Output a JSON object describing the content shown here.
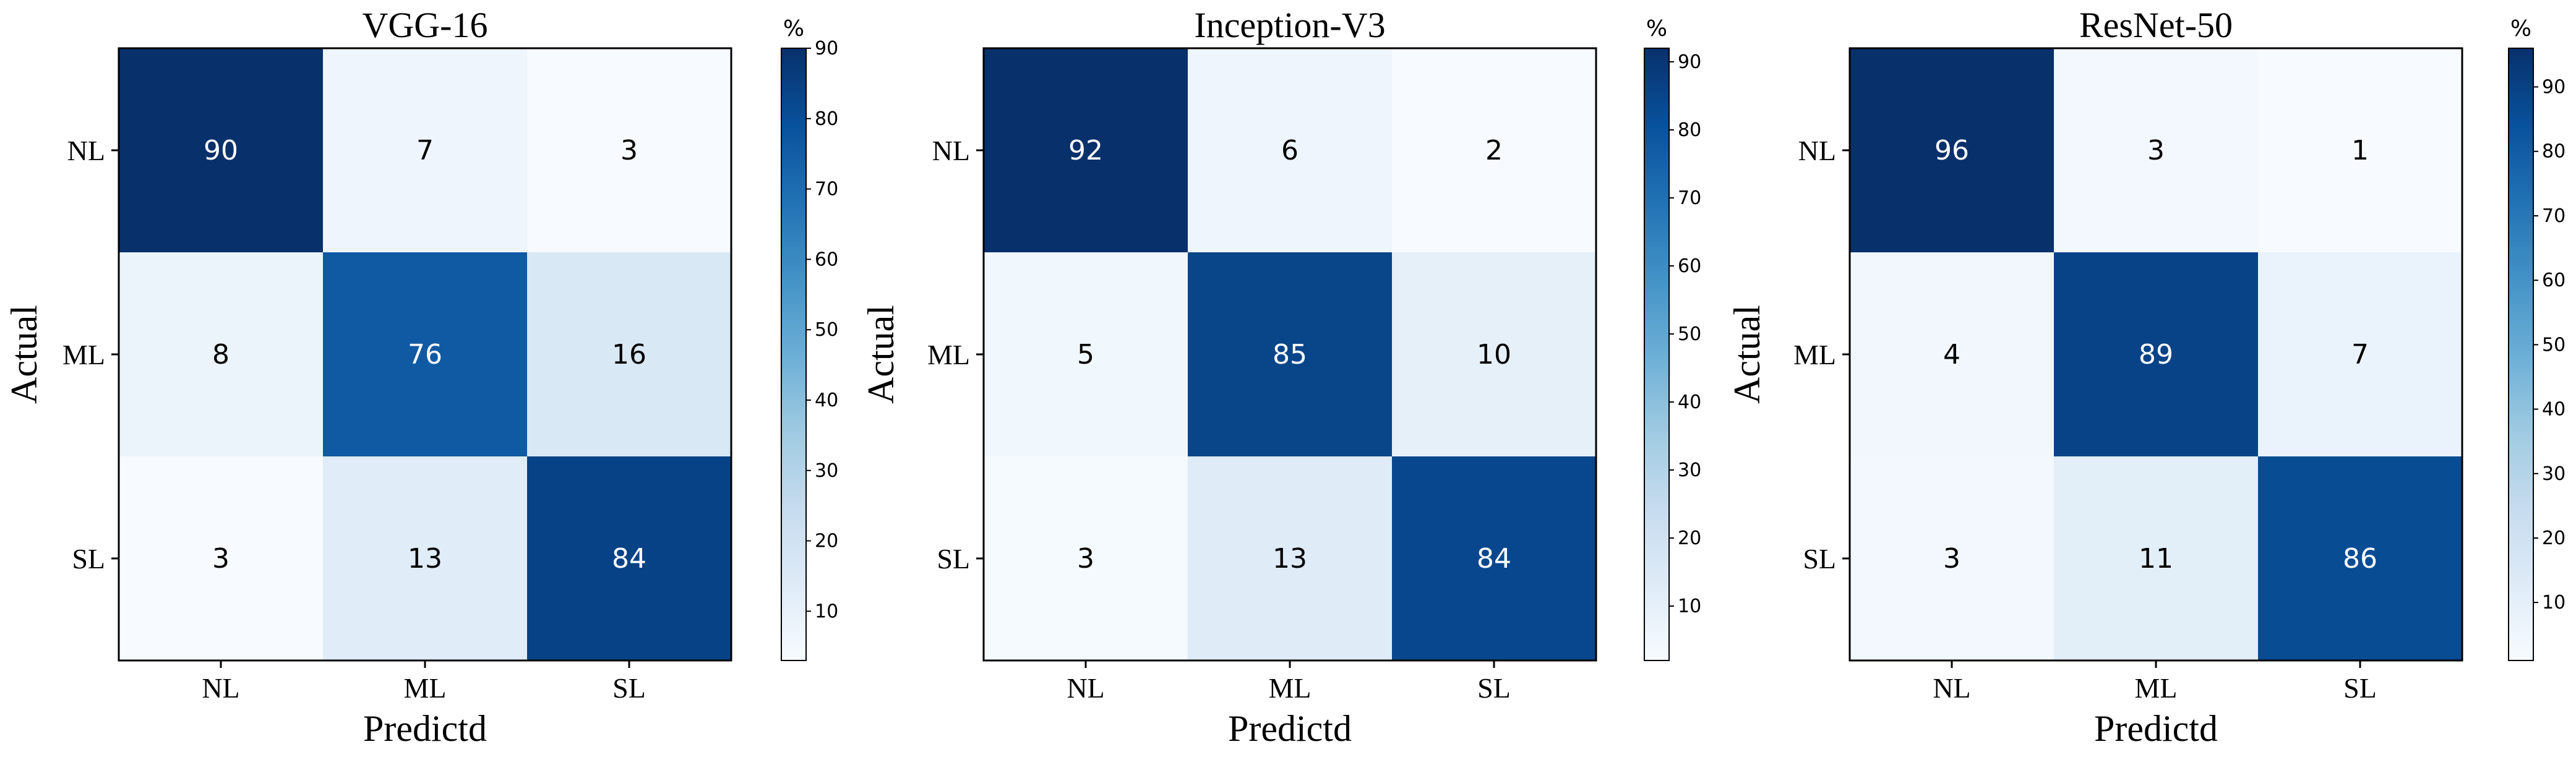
{
  "chart_data": [
    {
      "type": "heatmap",
      "title": "VGG-16",
      "xlabel": "Predictd",
      "ylabel": "Actual",
      "x_categories": [
        "NL",
        "ML",
        "SL"
      ],
      "y_categories": [
        "NL",
        "ML",
        "SL"
      ],
      "values": [
        [
          90,
          7,
          3
        ],
        [
          8,
          76,
          16
        ],
        [
          3,
          13,
          84
        ]
      ],
      "colorbar": {
        "unit": "%",
        "min": 3,
        "max": 90,
        "ticks": [
          10,
          20,
          30,
          40,
          50,
          60,
          70,
          80,
          90
        ],
        "colormap": "Blues"
      }
    },
    {
      "type": "heatmap",
      "title": "Inception-V3",
      "xlabel": "Predictd",
      "ylabel": "Actual",
      "x_categories": [
        "NL",
        "ML",
        "SL"
      ],
      "y_categories": [
        "NL",
        "ML",
        "SL"
      ],
      "values": [
        [
          92,
          6,
          2
        ],
        [
          5,
          85,
          10
        ],
        [
          3,
          13,
          84
        ]
      ],
      "colorbar": {
        "unit": "%",
        "min": 2,
        "max": 92,
        "ticks": [
          10,
          20,
          30,
          40,
          50,
          60,
          70,
          80,
          90
        ],
        "colormap": "Blues"
      }
    },
    {
      "type": "heatmap",
      "title": "ResNet-50",
      "xlabel": "Predictd",
      "ylabel": "Actual",
      "x_categories": [
        "NL",
        "ML",
        "SL"
      ],
      "y_categories": [
        "NL",
        "ML",
        "SL"
      ],
      "values": [
        [
          96,
          3,
          1
        ],
        [
          4,
          89,
          7
        ],
        [
          3,
          11,
          86
        ]
      ],
      "colorbar": {
        "unit": "%",
        "min": 1,
        "max": 96,
        "ticks": [
          10,
          20,
          30,
          40,
          50,
          60,
          70,
          80,
          90
        ],
        "colormap": "Blues"
      }
    }
  ]
}
